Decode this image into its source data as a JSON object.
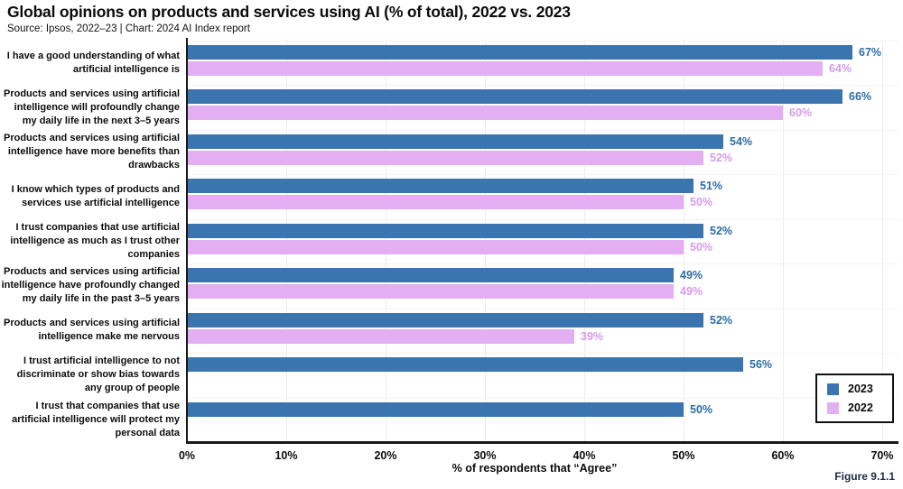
{
  "header": {
    "title": "Global opinions on products and services using AI (% of total), 2022 vs. 2023",
    "subtitle": "Source: Ipsos, 2022–23 | Chart: 2024 AI Index report"
  },
  "chart_data": {
    "type": "bar",
    "orientation": "horizontal-grouped",
    "title": "Global opinions on products and services using AI (% of total), 2022 vs. 2023",
    "xlabel": "% of respondents that “Agree”",
    "ylabel": "",
    "xlim": [
      0,
      70
    ],
    "x_ticks": [
      0,
      10,
      20,
      30,
      40,
      50,
      60,
      70
    ],
    "tick_suffix": "%",
    "value_suffix": "%",
    "grid": "vertical-light",
    "legend_position": "right-bottom",
    "categories": [
      "I have a good understanding of what artificial intelligence is",
      "Products and services using artificial intelligence will profoundly change my daily life in the next 3–5 years",
      "Products and services using artificial intelligence have more benefits than drawbacks",
      "I know which types of products and services use artificial intelligence",
      "I trust companies that use artificial intelligence as much as I trust other companies",
      "Products and services using artificial intelligence have profoundly changed my daily life in the past 3–5 years",
      "Products and services using artificial intelligence make me nervous",
      "I trust artificial intelligence to not discriminate or show bias towards any group of people",
      "I trust that companies that use artificial intelligence will protect my personal data"
    ],
    "series": [
      {
        "name": "2023",
        "color": "#3A75B0",
        "label_color": "#2E6DA6",
        "values": [
          67,
          66,
          54,
          51,
          52,
          49,
          52,
          56,
          50
        ]
      },
      {
        "name": "2022",
        "color": "#E3AEF2",
        "label_color": "#D79BEA",
        "values": [
          64,
          60,
          52,
          50,
          50,
          49,
          39,
          null,
          null
        ]
      }
    ]
  },
  "footer": {
    "figure_label": "Figure 9.1.1"
  }
}
